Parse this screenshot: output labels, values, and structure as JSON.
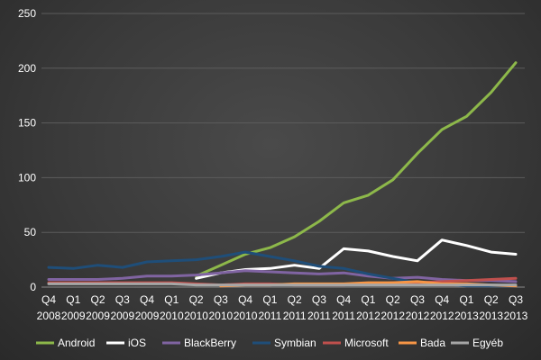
{
  "chart_data": {
    "type": "line",
    "title": "",
    "xlabel": "",
    "ylabel": "",
    "ylim": [
      0,
      250
    ],
    "yticks": [
      0,
      50,
      100,
      150,
      200,
      250
    ],
    "grid": true,
    "legend_position": "bottom",
    "categories": [
      {
        "q": "Q4",
        "year": "2008"
      },
      {
        "q": "Q1",
        "year": "2009"
      },
      {
        "q": "Q2",
        "year": "2009"
      },
      {
        "q": "Q3",
        "year": "2009"
      },
      {
        "q": "Q4",
        "year": "2009"
      },
      {
        "q": "Q1",
        "year": "2010"
      },
      {
        "q": "Q2",
        "year": "2010"
      },
      {
        "q": "Q3",
        "year": "2010"
      },
      {
        "q": "Q4",
        "year": "2010"
      },
      {
        "q": "Q1",
        "year": "2011"
      },
      {
        "q": "Q2",
        "year": "2011"
      },
      {
        "q": "Q3",
        "year": "2011"
      },
      {
        "q": "Q4",
        "year": "2011"
      },
      {
        "q": "Q1",
        "year": "2012"
      },
      {
        "q": "Q2",
        "year": "2012"
      },
      {
        "q": "Q3",
        "year": "2012"
      },
      {
        "q": "Q4",
        "year": "2012"
      },
      {
        "q": "Q1",
        "year": "2013"
      },
      {
        "q": "Q2",
        "year": "2013"
      },
      {
        "q": "Q3",
        "year": "2013"
      }
    ],
    "series": [
      {
        "name": "Android",
        "color": "#8db84a",
        "values": [
          null,
          null,
          null,
          null,
          null,
          null,
          10,
          20,
          30,
          36,
          46,
          60,
          77,
          84,
          98,
          122,
          144,
          156,
          178,
          205
        ]
      },
      {
        "name": "iOS",
        "color": "#ffffff",
        "values": [
          null,
          null,
          null,
          null,
          null,
          null,
          8,
          13,
          16,
          17,
          20,
          17,
          35,
          33,
          28,
          24,
          43,
          38,
          32,
          30
        ]
      },
      {
        "name": "BlackBerry",
        "color": "#8064a2",
        "values": [
          7,
          7,
          7,
          8,
          10,
          10,
          11,
          13,
          15,
          14,
          13,
          12,
          13,
          10,
          8,
          9,
          7,
          6,
          6,
          5
        ]
      },
      {
        "name": "Symbian",
        "color": "#1f4e79",
        "values": [
          18,
          17,
          20,
          18,
          23,
          24,
          25,
          28,
          32,
          28,
          24,
          19,
          17,
          12,
          8,
          4,
          3,
          1,
          1,
          1
        ]
      },
      {
        "name": "Microsoft",
        "color": "#c0504d",
        "values": [
          4,
          4,
          4,
          4,
          4,
          4,
          3,
          2,
          3,
          3,
          2,
          2,
          2,
          3,
          4,
          4,
          5,
          6,
          7,
          8
        ]
      },
      {
        "name": "Bada",
        "color": "#f79646",
        "values": [
          null,
          null,
          null,
          null,
          null,
          null,
          null,
          1,
          2,
          2,
          3,
          3,
          3,
          4,
          4,
          5,
          3,
          3,
          2,
          1
        ]
      },
      {
        "name": "Egyéb",
        "color": "#a6a6a6",
        "values": [
          3,
          3,
          3,
          3,
          3,
          3,
          2,
          2,
          2,
          2,
          2,
          2,
          2,
          2,
          2,
          2,
          2,
          2,
          2,
          2
        ]
      }
    ]
  }
}
